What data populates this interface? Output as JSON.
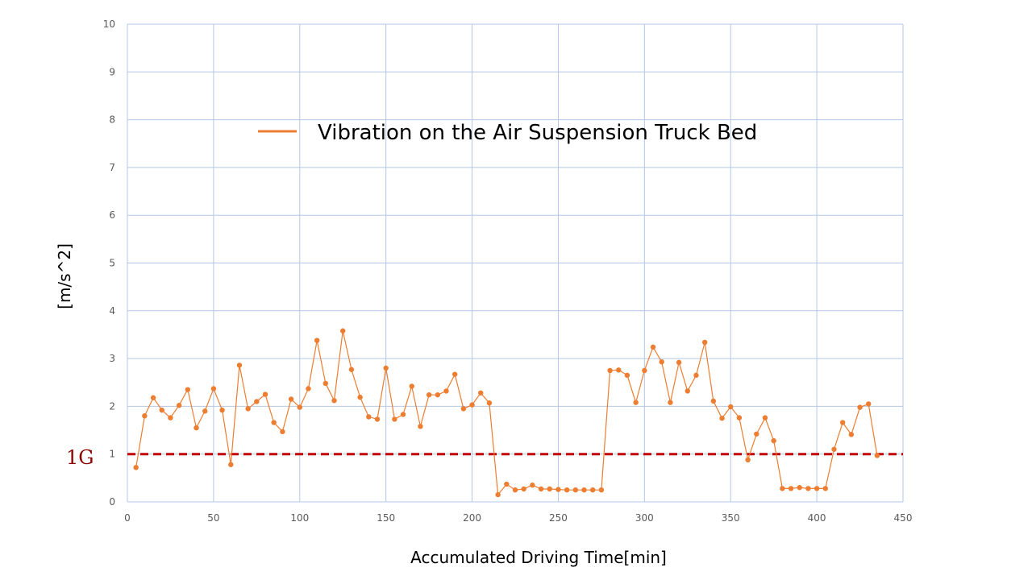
{
  "chart_data": {
    "type": "line",
    "xlabel": "Accumulated Driving Time[min]",
    "ylabel": "[m/s^2]",
    "xlim": [
      0,
      450
    ],
    "ylim": [
      0,
      10
    ],
    "x_ticks": [
      0,
      50,
      100,
      150,
      200,
      250,
      300,
      350,
      400,
      450
    ],
    "y_ticks": [
      0,
      1,
      2,
      3,
      4,
      5,
      6,
      7,
      8,
      9,
      10
    ],
    "grid": true,
    "legend_position": "top-center",
    "series": [
      {
        "name": "Vibration on the Air Suspension Truck Bed",
        "color": "#ed7d31",
        "x": [
          5,
          10,
          15,
          20,
          25,
          30,
          35,
          40,
          45,
          50,
          55,
          60,
          65,
          70,
          75,
          80,
          85,
          90,
          95,
          100,
          105,
          110,
          115,
          120,
          125,
          130,
          135,
          140,
          145,
          150,
          155,
          160,
          165,
          170,
          175,
          180,
          185,
          190,
          195,
          200,
          205,
          210,
          215,
          220,
          225,
          230,
          235,
          240,
          245,
          250,
          255,
          260,
          265,
          270,
          275,
          280,
          285,
          290,
          295,
          300,
          305,
          310,
          315,
          320,
          325,
          330,
          335,
          340,
          345,
          350,
          355,
          360,
          365,
          370,
          375,
          380,
          385,
          390,
          395,
          400,
          405,
          410,
          415,
          420,
          425,
          430,
          435
        ],
        "y": [
          0.72,
          1.8,
          2.18,
          1.92,
          1.76,
          2.02,
          2.35,
          1.55,
          1.9,
          2.37,
          1.92,
          0.78,
          2.86,
          1.95,
          2.1,
          2.25,
          1.66,
          1.47,
          2.15,
          1.98,
          2.37,
          3.38,
          2.48,
          2.12,
          3.58,
          2.77,
          2.19,
          1.78,
          1.73,
          2.8,
          1.73,
          1.83,
          2.42,
          1.58,
          2.24,
          2.24,
          2.32,
          2.67,
          1.95,
          2.03,
          2.28,
          2.07,
          0.15,
          0.37,
          0.25,
          0.27,
          0.35,
          0.27,
          0.27,
          0.26,
          0.25,
          0.25,
          0.25,
          0.25,
          0.25,
          2.75,
          2.76,
          2.65,
          2.08,
          2.75,
          3.24,
          2.93,
          2.08,
          2.92,
          2.32,
          2.65,
          3.34,
          2.11,
          1.75,
          1.99,
          1.76,
          0.88,
          1.42,
          1.76,
          1.28,
          0.28,
          0.28,
          0.3,
          0.28,
          0.28,
          0.28,
          1.1,
          1.66,
          1.41,
          1.98,
          2.05,
          0.97
        ]
      }
    ],
    "reference_line": {
      "label": "1G",
      "y": 1,
      "color": "#c00000"
    },
    "colors": {
      "grid": "#b4c7e7",
      "tick_text": "#595959"
    }
  }
}
